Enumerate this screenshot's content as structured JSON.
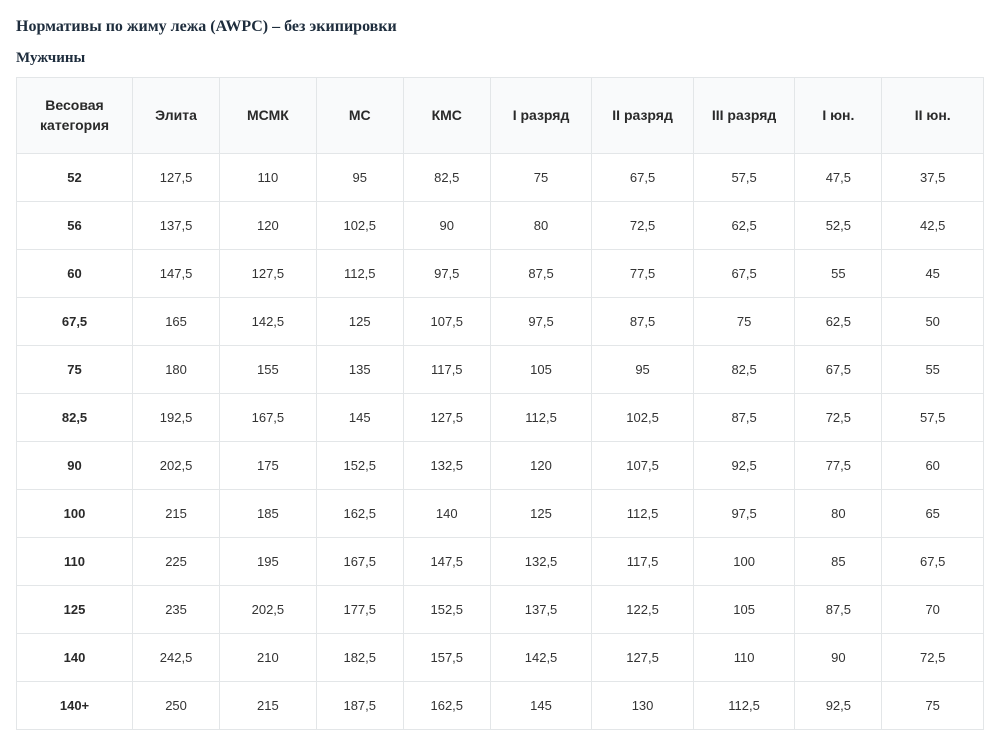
{
  "title": "Нормативы по жиму лежа (AWPC) – без экипировки",
  "subtitle": "Мужчины",
  "table": {
    "type": "table",
    "header_bg": "#f9fafb",
    "border_color": "#e3e6e8",
    "header_font_size": 14,
    "cell_font_size": 13,
    "text_color": "#333333",
    "header_text_color": "#2a2a2a",
    "columns": [
      "Весовая категория",
      "Элита",
      "МСМК",
      "МС",
      "КМС",
      "I разряд",
      "II разряд",
      "III разряд",
      "I юн.",
      "II юн."
    ],
    "column_widths_pct": [
      12,
      9,
      10,
      9,
      9,
      10.5,
      10.5,
      10.5,
      9,
      10.5
    ],
    "rows": [
      [
        "52",
        "127,5",
        "110",
        "95",
        "82,5",
        "75",
        "67,5",
        "57,5",
        "47,5",
        "37,5"
      ],
      [
        "56",
        "137,5",
        "120",
        "102,5",
        "90",
        "80",
        "72,5",
        "62,5",
        "52,5",
        "42,5"
      ],
      [
        "60",
        "147,5",
        "127,5",
        "112,5",
        "97,5",
        "87,5",
        "77,5",
        "67,5",
        "55",
        "45"
      ],
      [
        "67,5",
        "165",
        "142,5",
        "125",
        "107,5",
        "97,5",
        "87,5",
        "75",
        "62,5",
        "50"
      ],
      [
        "75",
        "180",
        "155",
        "135",
        "117,5",
        "105",
        "95",
        "82,5",
        "67,5",
        "55"
      ],
      [
        "82,5",
        "192,5",
        "167,5",
        "145",
        "127,5",
        "112,5",
        "102,5",
        "87,5",
        "72,5",
        "57,5"
      ],
      [
        "90",
        "202,5",
        "175",
        "152,5",
        "132,5",
        "120",
        "107,5",
        "92,5",
        "77,5",
        "60"
      ],
      [
        "100",
        "215",
        "185",
        "162,5",
        "140",
        "125",
        "112,5",
        "97,5",
        "80",
        "65"
      ],
      [
        "110",
        "225",
        "195",
        "167,5",
        "147,5",
        "132,5",
        "117,5",
        "100",
        "85",
        "67,5"
      ],
      [
        "125",
        "235",
        "202,5",
        "177,5",
        "152,5",
        "137,5",
        "122,5",
        "105",
        "87,5",
        "70"
      ],
      [
        "140",
        "242,5",
        "210",
        "182,5",
        "157,5",
        "142,5",
        "127,5",
        "110",
        "90",
        "72,5"
      ],
      [
        "140+",
        "250",
        "215",
        "187,5",
        "162,5",
        "145",
        "130",
        "112,5",
        "92,5",
        "75"
      ]
    ]
  }
}
